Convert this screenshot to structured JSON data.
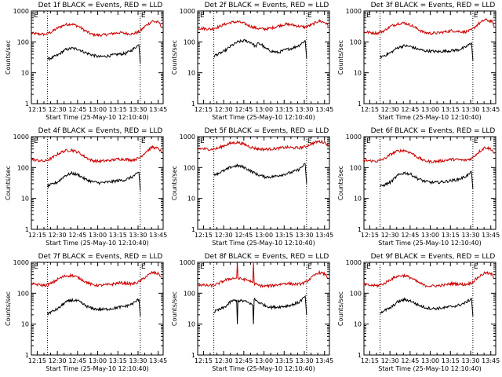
{
  "chart_data": [
    {
      "type": "line",
      "title": "Det 1f BLACK = Events, RED = LLD",
      "ylabel": "Counts/sec",
      "xlabel": "Start Time (25-May-10 12:10:40)",
      "x_ticks": [
        "12:15",
        "12:30",
        "12:45",
        "13:00",
        "13:15",
        "13:30",
        "13:45"
      ],
      "y_ticks": [
        "1",
        "10",
        "100",
        "1000"
      ],
      "ylim": [
        1,
        1000
      ],
      "xlim_minutes": [
        0,
        98
      ],
      "markers": [
        "E",
        "E"
      ],
      "series": [
        {
          "name": "RED = LLD",
          "color": "#cc0000",
          "x": [
            0,
            5,
            10,
            15,
            20,
            25,
            30,
            35,
            40,
            45,
            50,
            55,
            60,
            65,
            70,
            75,
            80,
            85,
            90,
            95,
            97
          ],
          "values": [
            190,
            180,
            175,
            210,
            290,
            360,
            380,
            320,
            230,
            175,
            165,
            170,
            185,
            200,
            190,
            180,
            210,
            330,
            470,
            420,
            300
          ]
        },
        {
          "name": "BLACK = Events",
          "color": "#000000",
          "x": [
            12,
            15,
            20,
            25,
            30,
            35,
            40,
            45,
            50,
            55,
            60,
            65,
            70,
            75,
            78,
            80,
            81
          ],
          "values": [
            28,
            30,
            38,
            55,
            62,
            58,
            45,
            38,
            33,
            34,
            37,
            40,
            42,
            55,
            70,
            80,
            20
          ]
        }
      ]
    },
    {
      "type": "line",
      "title": "Det 2f BLACK = Events, RED = LLD",
      "ylabel": "Counts/sec",
      "xlabel": "Start Time (25-May-10 12:10:40)",
      "x_ticks": [
        "12:15",
        "12:30",
        "12:45",
        "13:00",
        "13:15",
        "13:30",
        "13:45"
      ],
      "y_ticks": [
        "1",
        "10",
        "100",
        "1000"
      ],
      "ylim": [
        1,
        1000
      ],
      "xlim_minutes": [
        0,
        98
      ],
      "markers": [
        "E",
        "E"
      ],
      "series": [
        {
          "name": "RED = LLD",
          "color": "#cc0000",
          "x": [
            0,
            5,
            10,
            15,
            20,
            25,
            30,
            35,
            40,
            45,
            50,
            55,
            60,
            65,
            70,
            75,
            80,
            85,
            90,
            95,
            97
          ],
          "values": [
            280,
            270,
            260,
            300,
            370,
            430,
            450,
            390,
            310,
            270,
            260,
            280,
            330,
            370,
            360,
            320,
            300,
            360,
            480,
            420,
            330
          ]
        },
        {
          "name": "BLACK = Events",
          "color": "#000000",
          "x": [
            12,
            15,
            20,
            25,
            30,
            35,
            40,
            43,
            45,
            48,
            50,
            55,
            60,
            65,
            70,
            75,
            78,
            80,
            81
          ],
          "values": [
            35,
            40,
            50,
            75,
            100,
            110,
            95,
            70,
            90,
            80,
            62,
            50,
            45,
            55,
            62,
            75,
            95,
            110,
            30
          ]
        }
      ]
    },
    {
      "type": "line",
      "title": "Det 3f BLACK = Events, RED = LLD",
      "ylabel": "Counts/sec",
      "xlabel": "Start Time (25-May-10 12:10:40)",
      "x_ticks": [
        "12:15",
        "12:30",
        "12:45",
        "13:00",
        "13:15",
        "13:30",
        "13:45"
      ],
      "y_ticks": [
        "1",
        "10",
        "100",
        "1000"
      ],
      "ylim": [
        1,
        1000
      ],
      "xlim_minutes": [
        0,
        98
      ],
      "markers": [
        "E",
        "E"
      ],
      "series": [
        {
          "name": "RED = LLD",
          "color": "#cc0000",
          "x": [
            0,
            5,
            10,
            15,
            20,
            25,
            30,
            35,
            40,
            45,
            50,
            55,
            60,
            65,
            70,
            75,
            80,
            85,
            90,
            95,
            97
          ],
          "values": [
            210,
            200,
            190,
            230,
            320,
            390,
            410,
            350,
            260,
            200,
            190,
            195,
            210,
            230,
            220,
            210,
            240,
            380,
            520,
            460,
            330
          ]
        },
        {
          "name": "BLACK = Events",
          "color": "#000000",
          "x": [
            12,
            15,
            20,
            25,
            30,
            35,
            40,
            45,
            50,
            55,
            60,
            65,
            70,
            75,
            78,
            80,
            81
          ],
          "values": [
            32,
            36,
            45,
            65,
            75,
            70,
            58,
            52,
            50,
            48,
            50,
            52,
            55,
            65,
            80,
            95,
            25
          ]
        }
      ]
    },
    {
      "type": "line",
      "title": "Det 4f BLACK = Events, RED = LLD",
      "ylabel": "Counts/sec",
      "xlabel": "Start Time (25-May-10 12:10:40)",
      "x_ticks": [
        "12:15",
        "12:30",
        "12:45",
        "13:00",
        "13:15",
        "13:30",
        "13:45"
      ],
      "y_ticks": [
        "1",
        "10",
        "100",
        "1000"
      ],
      "ylim": [
        1,
        1000
      ],
      "xlim_minutes": [
        0,
        98
      ],
      "markers": [
        "E",
        "E"
      ],
      "series": [
        {
          "name": "RED = LLD",
          "color": "#cc0000",
          "x": [
            0,
            5,
            10,
            15,
            20,
            25,
            30,
            35,
            40,
            45,
            50,
            55,
            60,
            65,
            70,
            75,
            80,
            85,
            90,
            95,
            97
          ],
          "values": [
            180,
            170,
            160,
            200,
            280,
            350,
            370,
            310,
            220,
            170,
            160,
            165,
            175,
            190,
            185,
            175,
            200,
            320,
            460,
            400,
            290
          ]
        },
        {
          "name": "BLACK = Events",
          "color": "#000000",
          "x": [
            12,
            15,
            20,
            25,
            30,
            35,
            40,
            45,
            50,
            55,
            60,
            65,
            70,
            75,
            78,
            80,
            81
          ],
          "values": [
            25,
            28,
            35,
            55,
            65,
            58,
            42,
            35,
            32,
            33,
            35,
            38,
            40,
            50,
            60,
            70,
            18
          ]
        }
      ]
    },
    {
      "type": "line",
      "title": "Det 5f BLACK = Events, RED = LLD",
      "ylabel": "Counts/sec",
      "xlabel": "Start Time (25-May-10 12:10:40)",
      "x_ticks": [
        "12:15",
        "12:30",
        "12:45",
        "13:00",
        "13:15",
        "13:30",
        "13:45"
      ],
      "y_ticks": [
        "1",
        "10",
        "100",
        "1000"
      ],
      "ylim": [
        1,
        1000
      ],
      "xlim_minutes": [
        0,
        98
      ],
      "markers": [
        "E",
        "E"
      ],
      "series": [
        {
          "name": "RED = LLD",
          "color": "#cc0000",
          "x": [
            0,
            5,
            10,
            15,
            20,
            25,
            30,
            35,
            40,
            45,
            50,
            55,
            60,
            65,
            70,
            75,
            80,
            85,
            90,
            95,
            97
          ],
          "values": [
            420,
            400,
            390,
            420,
            520,
            620,
            650,
            560,
            450,
            400,
            390,
            400,
            420,
            450,
            440,
            430,
            470,
            600,
            700,
            650,
            520
          ]
        },
        {
          "name": "BLACK = Events",
          "color": "#000000",
          "x": [
            12,
            15,
            20,
            25,
            30,
            35,
            40,
            45,
            50,
            55,
            60,
            65,
            70,
            75,
            78,
            80,
            81
          ],
          "values": [
            60,
            65,
            80,
            105,
            115,
            100,
            75,
            58,
            50,
            50,
            55,
            62,
            70,
            85,
            110,
            130,
            30
          ]
        }
      ]
    },
    {
      "type": "line",
      "title": "Det 6f BLACK = Events, RED = LLD",
      "ylabel": "Counts/sec",
      "xlabel": "Start Time (25-May-10 12:10:40)",
      "x_ticks": [
        "12:15",
        "12:30",
        "12:45",
        "13:00",
        "13:15",
        "13:30",
        "13:45"
      ],
      "y_ticks": [
        "1",
        "10",
        "100",
        "1000"
      ],
      "ylim": [
        1,
        1000
      ],
      "xlim_minutes": [
        0,
        98
      ],
      "markers": [
        "E",
        "E"
      ],
      "series": [
        {
          "name": "RED = LLD",
          "color": "#cc0000",
          "x": [
            0,
            5,
            10,
            15,
            20,
            25,
            30,
            35,
            40,
            45,
            50,
            55,
            60,
            65,
            70,
            75,
            80,
            85,
            90,
            95,
            97
          ],
          "values": [
            170,
            165,
            160,
            190,
            270,
            340,
            360,
            300,
            215,
            165,
            155,
            160,
            170,
            185,
            180,
            170,
            195,
            310,
            450,
            390,
            280
          ]
        },
        {
          "name": "BLACK = Events",
          "color": "#000000",
          "x": [
            12,
            15,
            20,
            25,
            30,
            35,
            40,
            45,
            50,
            55,
            60,
            65,
            70,
            75,
            78,
            80,
            81
          ],
          "values": [
            24,
            27,
            34,
            55,
            68,
            60,
            44,
            36,
            33,
            33,
            35,
            38,
            41,
            50,
            60,
            72,
            20
          ]
        }
      ]
    },
    {
      "type": "line",
      "title": "Det 7f BLACK = Events, RED = LLD",
      "ylabel": "Counts/sec",
      "xlabel": "Start Time (25-May-10 12:10:40)",
      "x_ticks": [
        "12:15",
        "12:30",
        "12:45",
        "13:00",
        "13:15",
        "13:30",
        "13:45"
      ],
      "y_ticks": [
        "1",
        "10",
        "100",
        "1000"
      ],
      "ylim": [
        1,
        1000
      ],
      "xlim_minutes": [
        0,
        98
      ],
      "markers": [
        "E",
        "E"
      ],
      "series": [
        {
          "name": "RED = LLD",
          "color": "#cc0000",
          "x": [
            0,
            5,
            10,
            15,
            20,
            25,
            30,
            35,
            40,
            45,
            50,
            55,
            60,
            65,
            70,
            75,
            80,
            85,
            90,
            95,
            97
          ],
          "values": [
            200,
            190,
            180,
            210,
            290,
            360,
            380,
            320,
            240,
            190,
            180,
            185,
            195,
            215,
            210,
            200,
            230,
            340,
            470,
            420,
            320
          ]
        },
        {
          "name": "BLACK = Events",
          "color": "#000000",
          "x": [
            12,
            15,
            20,
            25,
            30,
            35,
            40,
            45,
            50,
            55,
            60,
            65,
            70,
            75,
            78,
            80,
            81
          ],
          "values": [
            22,
            25,
            32,
            50,
            60,
            55,
            40,
            32,
            30,
            30,
            32,
            35,
            38,
            45,
            55,
            65,
            18
          ]
        }
      ]
    },
    {
      "type": "line",
      "title": "Det 8f BLACK = Events, RED = LLD",
      "ylabel": "Counts/sec",
      "xlabel": "Start Time (25-May-10 12:10:40)",
      "x_ticks": [
        "12:15",
        "12:30",
        "12:45",
        "13:00",
        "13:15",
        "13:30",
        "13:45"
      ],
      "y_ticks": [
        "1",
        "10",
        "100",
        "1000"
      ],
      "ylim": [
        1,
        1000
      ],
      "xlim_minutes": [
        0,
        98
      ],
      "markers": [
        "E",
        "E"
      ],
      "series": [
        {
          "name": "RED = LLD",
          "color": "#cc0000",
          "x": [
            0,
            5,
            10,
            15,
            20,
            25,
            29,
            29.5,
            30,
            35,
            40,
            41,
            41.5,
            42,
            45,
            50,
            55,
            60,
            65,
            70,
            75,
            80,
            85,
            90,
            95,
            97
          ],
          "values": [
            190,
            180,
            175,
            200,
            260,
            300,
            310,
            1000,
            300,
            280,
            240,
            220,
            1000,
            210,
            180,
            170,
            175,
            190,
            210,
            200,
            195,
            220,
            330,
            470,
            410,
            310
          ]
        },
        {
          "name": "BLACK = Events",
          "color": "#000000",
          "x": [
            12,
            15,
            20,
            25,
            29,
            29.5,
            30,
            35,
            40,
            41,
            41.5,
            42,
            45,
            50,
            55,
            60,
            65,
            70,
            75,
            78,
            80,
            81
          ],
          "values": [
            25,
            28,
            35,
            55,
            60,
            10,
            58,
            55,
            45,
            40,
            10,
            65,
            52,
            40,
            35,
            36,
            38,
            42,
            50,
            65,
            80,
            20
          ]
        }
      ]
    },
    {
      "type": "line",
      "title": "Det 9f BLACK = Events, RED = LLD",
      "ylabel": "Counts/sec",
      "xlabel": "Start Time (25-May-10 12:10:40)",
      "x_ticks": [
        "12:15",
        "12:30",
        "12:45",
        "13:00",
        "13:15",
        "13:30",
        "13:45"
      ],
      "y_ticks": [
        "1",
        "10",
        "100",
        "1000"
      ],
      "ylim": [
        1,
        1000
      ],
      "xlim_minutes": [
        0,
        98
      ],
      "markers": [
        "E",
        "E"
      ],
      "series": [
        {
          "name": "RED = LLD",
          "color": "#cc0000",
          "x": [
            0,
            5,
            10,
            15,
            20,
            25,
            30,
            35,
            40,
            45,
            50,
            55,
            60,
            65,
            70,
            75,
            80,
            85,
            90,
            95,
            97
          ],
          "values": [
            190,
            180,
            175,
            205,
            285,
            355,
            375,
            315,
            230,
            180,
            170,
            175,
            185,
            205,
            200,
            190,
            215,
            330,
            460,
            410,
            300
          ]
        },
        {
          "name": "BLACK = Events",
          "color": "#000000",
          "x": [
            12,
            15,
            20,
            25,
            30,
            35,
            40,
            45,
            50,
            55,
            60,
            65,
            70,
            75,
            78,
            80,
            81
          ],
          "values": [
            24,
            27,
            34,
            52,
            62,
            56,
            42,
            35,
            32,
            32,
            34,
            37,
            40,
            48,
            58,
            68,
            18
          ]
        }
      ]
    }
  ]
}
